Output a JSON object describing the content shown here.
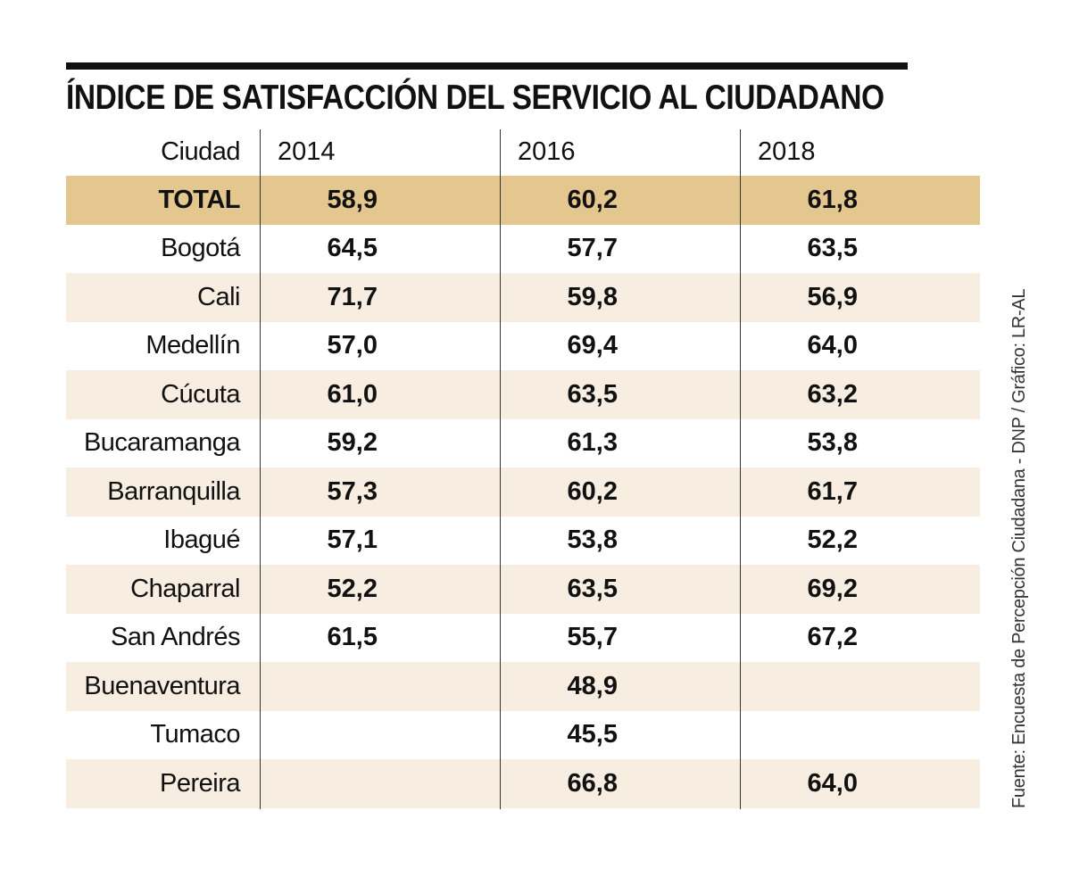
{
  "title": "ÍNDICE DE SATISFACCIÓN DEL SERVICIO AL CIUDADANO",
  "source": "Fuente: Encuesta de Percepción Ciudadana - DNP / Gráfico: LR-AL",
  "colors": {
    "total_row": "#e4c68f",
    "alt_row": "#f7ede1",
    "rule": "#111111"
  },
  "table": {
    "headers": [
      "Ciudad",
      "2014",
      "2016",
      "2018"
    ],
    "rows": [
      {
        "city": "TOTAL",
        "v2014": "58,9",
        "v2016": "60,2",
        "v2018": "61,8"
      },
      {
        "city": "Bogotá",
        "v2014": "64,5",
        "v2016": "57,7",
        "v2018": "63,5"
      },
      {
        "city": "Cali",
        "v2014": "71,7",
        "v2016": "59,8",
        "v2018": "56,9"
      },
      {
        "city": "Medellín",
        "v2014": "57,0",
        "v2016": "69,4",
        "v2018": "64,0"
      },
      {
        "city": "Cúcuta",
        "v2014": "61,0",
        "v2016": "63,5",
        "v2018": "63,2"
      },
      {
        "city": "Bucaramanga",
        "v2014": "59,2",
        "v2016": "61,3",
        "v2018": "53,8"
      },
      {
        "city": "Barranquilla",
        "v2014": "57,3",
        "v2016": "60,2",
        "v2018": "61,7"
      },
      {
        "city": "Ibagué",
        "v2014": "57,1",
        "v2016": "53,8",
        "v2018": "52,2"
      },
      {
        "city": "Chaparral",
        "v2014": "52,2",
        "v2016": "63,5",
        "v2018": "69,2"
      },
      {
        "city": "San Andrés",
        "v2014": "61,5",
        "v2016": "55,7",
        "v2018": "67,2"
      },
      {
        "city": "Buenaventura",
        "v2014": "",
        "v2016": "48,9",
        "v2018": ""
      },
      {
        "city": "Tumaco",
        "v2014": "",
        "v2016": "45,5",
        "v2018": ""
      },
      {
        "city": "Pereira",
        "v2014": "",
        "v2016": "66,8",
        "v2018": "64,0"
      }
    ]
  },
  "chart_data": {
    "type": "table",
    "title": "ÍNDICE DE SATISFACCIÓN DEL SERVICIO AL CIUDADANO",
    "columns": [
      "Ciudad",
      "2014",
      "2016",
      "2018"
    ],
    "categories": [
      "TOTAL",
      "Bogotá",
      "Cali",
      "Medellín",
      "Cúcuta",
      "Bucaramanga",
      "Barranquilla",
      "Ibagué",
      "Chaparral",
      "San Andrés",
      "Buenaventura",
      "Tumaco",
      "Pereira"
    ],
    "series": [
      {
        "name": "2014",
        "values": [
          58.9,
          64.5,
          71.7,
          57.0,
          61.0,
          59.2,
          57.3,
          57.1,
          52.2,
          61.5,
          null,
          null,
          null
        ]
      },
      {
        "name": "2016",
        "values": [
          60.2,
          57.7,
          59.8,
          69.4,
          63.5,
          61.3,
          60.2,
          53.8,
          63.5,
          55.7,
          48.9,
          45.5,
          66.8
        ]
      },
      {
        "name": "2018",
        "values": [
          61.8,
          63.5,
          56.9,
          64.0,
          63.2,
          53.8,
          61.7,
          52.2,
          69.2,
          67.2,
          null,
          null,
          64.0
        ]
      }
    ],
    "source": "Fuente: Encuesta de Percepción Ciudadana - DNP / Gráfico: LR-AL"
  }
}
